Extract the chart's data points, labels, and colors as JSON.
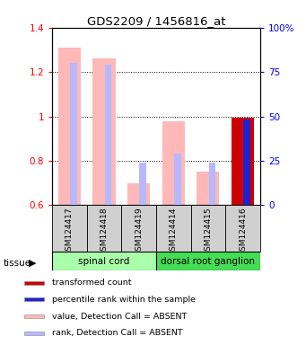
{
  "title": "GDS2209 / 1456816_at",
  "samples": [
    "GSM124417",
    "GSM124418",
    "GSM124419",
    "GSM124414",
    "GSM124415",
    "GSM124416"
  ],
  "tissue_groups": [
    {
      "label": "spinal cord",
      "indices": [
        0,
        1,
        2
      ],
      "color": "#aaffaa"
    },
    {
      "label": "dorsal root ganglion",
      "indices": [
        3,
        4,
        5
      ],
      "color": "#44dd55"
    }
  ],
  "value_absent": [
    1.31,
    1.26,
    0.7,
    0.98,
    0.75,
    null
  ],
  "rank_absent_top": [
    0.8,
    0.79,
    0.24,
    0.29,
    0.24,
    null
  ],
  "value_present": [
    null,
    null,
    null,
    null,
    null,
    0.995
  ],
  "rank_present_top": [
    null,
    null,
    null,
    null,
    null,
    0.485
  ],
  "ylim_left": [
    0.6,
    1.4
  ],
  "ylim_right": [
    0.0,
    1.0
  ],
  "yticks_left": [
    0.6,
    0.8,
    1.0,
    1.2,
    1.4
  ],
  "ytick_labels_left": [
    "0.6",
    "0.8",
    "1",
    "1.2",
    "1.4"
  ],
  "yticks_right": [
    0.0,
    0.25,
    0.5,
    0.75,
    1.0
  ],
  "ytick_labels_right": [
    "0",
    "25",
    "50",
    "75",
    "100%"
  ],
  "bar_width": 0.65,
  "rank_bar_width": 0.2,
  "color_value_absent": "#ffb8b8",
  "color_rank_absent": "#b8b8ff",
  "color_value_present": "#cc0000",
  "color_rank_present": "#2222cc",
  "bg_color": "#ffffff",
  "sample_box_color": "#d0d0d0",
  "legend_items": [
    {
      "color": "#cc0000",
      "label": "transformed count"
    },
    {
      "color": "#2222cc",
      "label": "percentile rank within the sample"
    },
    {
      "color": "#ffb8b8",
      "label": "value, Detection Call = ABSENT"
    },
    {
      "color": "#b8b8ff",
      "label": "rank, Detection Call = ABSENT"
    }
  ]
}
